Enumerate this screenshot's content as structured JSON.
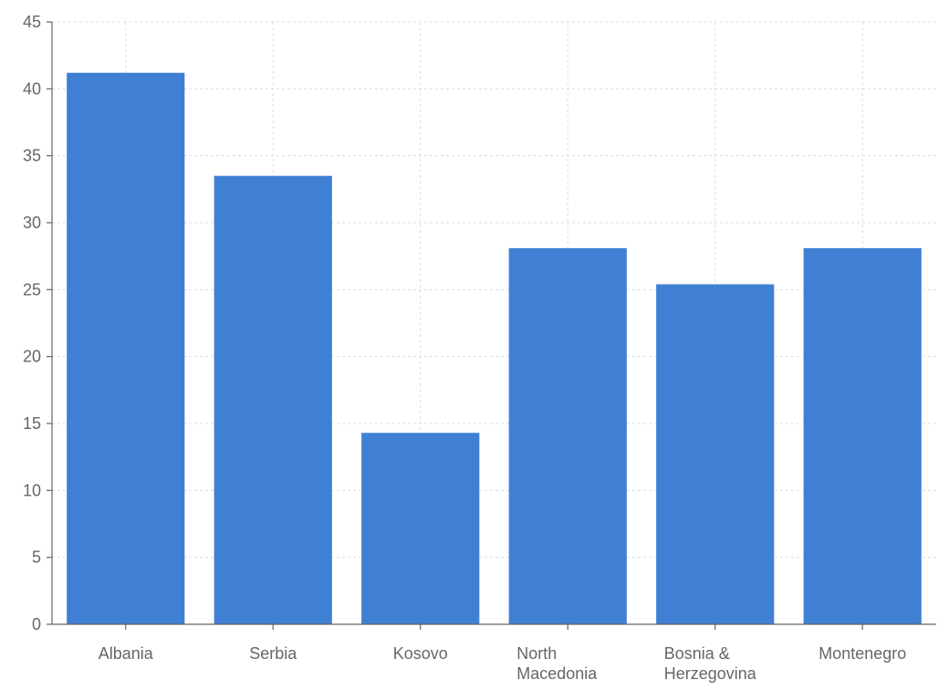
{
  "chart_data": {
    "type": "bar",
    "categories": [
      "Albania",
      "Serbia",
      "Kosovo",
      "North Macedonia",
      "Bosnia & Herzegovina",
      "Montenegro"
    ],
    "category_lines": [
      [
        "Albania"
      ],
      [
        "Serbia"
      ],
      [
        "Kosovo"
      ],
      [
        "North",
        "Macedonia"
      ],
      [
        "Bosnia &",
        "Herzegovina"
      ],
      [
        "Montenegro"
      ]
    ],
    "series": [
      {
        "values": [
          41.2,
          33.5,
          14.3,
          28.1,
          25.4,
          28.1
        ],
        "color": "#4080d4"
      }
    ],
    "title": "",
    "xlabel": "",
    "ylabel": "",
    "ylim": [
      0,
      45
    ],
    "yticks": [
      0,
      5,
      10,
      15,
      20,
      25,
      30,
      35,
      40,
      45
    ],
    "grid": true,
    "legend": "none",
    "colors": {
      "bar": "#4080d4",
      "axis": "#666666",
      "grid": "#dddddd",
      "text": "#666666"
    }
  }
}
